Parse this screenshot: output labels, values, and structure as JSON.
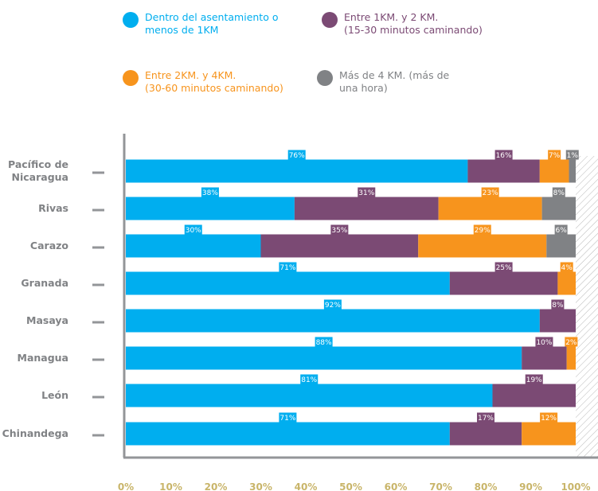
{
  "legend": [
    {
      "label": "Dentro del asentamiento o\nmenos de 1KM",
      "color": "#00aeef"
    },
    {
      "label": "Entre 1KM. y 2 KM.\n(15-30 minutos caminando)",
      "color": "#7b4a74"
    },
    {
      "label": "Entre 2KM. y 4KM.\n(30-60 minutos caminando)",
      "color": "#f7941d"
    },
    {
      "label": "Más de 4 KM. (más de\nuna hora)",
      "color": "#808285"
    }
  ],
  "chart_data": {
    "type": "bar",
    "orientation": "horizontal",
    "stacked": true,
    "categories": [
      "Pacífico de\nNicaragua",
      "Rivas",
      "Carazo",
      "Granada",
      "Masaya",
      "Managua",
      "León",
      "Chinandega"
    ],
    "series": [
      {
        "name": "Dentro del asentamiento o menos de 1KM",
        "color": "#00aeef",
        "values": [
          76,
          38,
          30,
          71,
          92,
          88,
          81,
          71
        ]
      },
      {
        "name": "Entre 1KM. y 2 KM. (15-30 minutos caminando)",
        "color": "#7b4a74",
        "values": [
          16,
          31,
          35,
          25,
          8,
          10,
          19,
          17
        ]
      },
      {
        "name": "Entre 2KM. y 4KM. (30-60 minutos caminando)",
        "color": "#f7941d",
        "values": [
          7,
          23,
          29,
          4,
          null,
          2,
          null,
          12
        ]
      },
      {
        "name": "Más de 4 KM. (más de una hora)",
        "color": "#808285",
        "values": [
          1,
          8,
          6,
          null,
          null,
          null,
          null,
          null
        ]
      }
    ],
    "segment_ends": [
      [
        76,
        92,
        98.5,
        100
      ],
      [
        37.5,
        69.5,
        92.5,
        100
      ],
      [
        30,
        65,
        93.5,
        100
      ],
      [
        72,
        96,
        100,
        null
      ],
      [
        92,
        100,
        null,
        null
      ],
      [
        88,
        98,
        100,
        null
      ],
      [
        81.5,
        100,
        null,
        null
      ],
      [
        72,
        88,
        100,
        null
      ]
    ],
    "x_ticks": [
      "0%",
      "10%",
      "20%",
      "30%",
      "40%",
      "50%",
      "60%",
      "70%",
      "80%",
      "90%",
      "100%"
    ],
    "xlim": [
      0,
      100
    ],
    "grid": false,
    "legend_position": "top"
  }
}
